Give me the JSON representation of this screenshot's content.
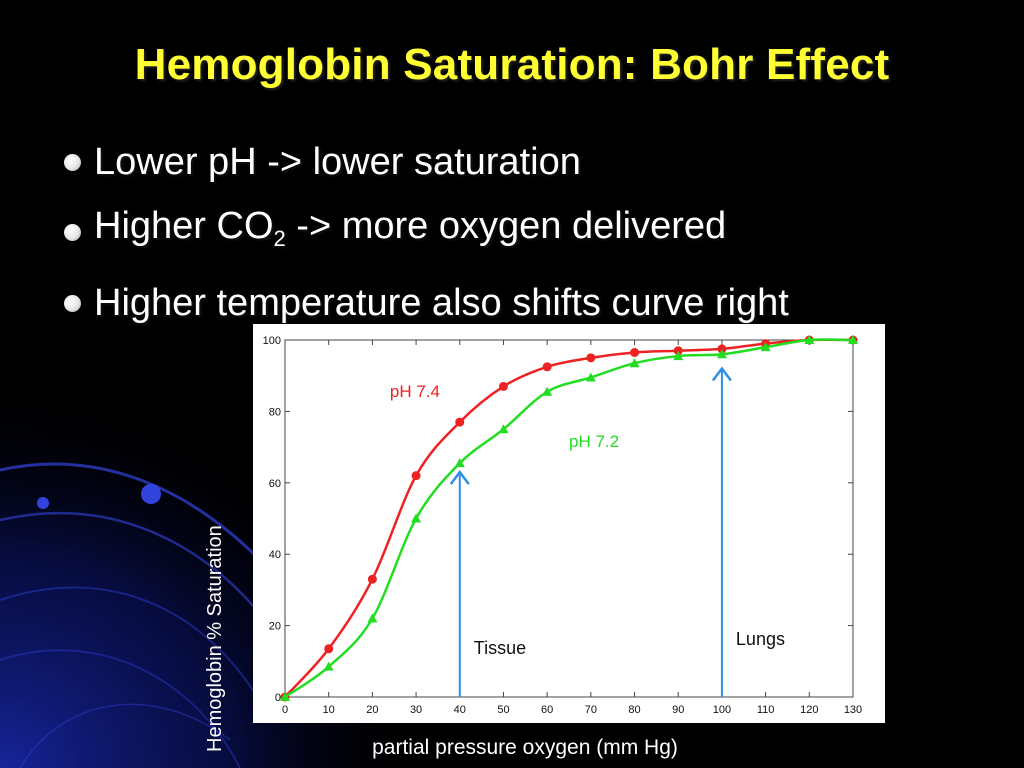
{
  "slide": {
    "title": "Hemoglobin Saturation: Bohr Effect",
    "bullets": [
      {
        "text": "Lower pH -> lower saturation"
      },
      {
        "text_before": "Higher CO",
        "subscript": "2",
        "text_after": " -> more oxygen delivered"
      },
      {
        "text": "Higher temperature also shifts curve right"
      }
    ]
  },
  "colors": {
    "background": "#000000",
    "title": "#ffff33",
    "text": "#ffffff",
    "decor": "#2233cc",
    "ph74": "#ee2222",
    "ph72": "#22dd22",
    "arrow": "#2f8fe8"
  },
  "chart_data": {
    "type": "line",
    "xlabel": "partial pressure oxygen (mm Hg)",
    "ylabel": "Hemoglobin % Saturation",
    "xlim": [
      0,
      130
    ],
    "ylim": [
      0,
      100
    ],
    "x_ticks": [
      0,
      10,
      20,
      30,
      40,
      50,
      60,
      70,
      80,
      90,
      100,
      110,
      120,
      130
    ],
    "y_ticks": [
      0,
      20,
      40,
      60,
      80,
      100
    ],
    "grid": false,
    "series": [
      {
        "name": "pH 7.4",
        "color": "#ee2222",
        "marker": "circle",
        "x": [
          0,
          10,
          20,
          30,
          40,
          50,
          60,
          70,
          80,
          90,
          100,
          110,
          120,
          130
        ],
        "y": [
          0,
          13.5,
          33,
          62,
          77,
          87,
          92.5,
          95,
          96.5,
          97,
          97.5,
          99,
          100,
          100
        ]
      },
      {
        "name": "pH 7.2",
        "color": "#22dd22",
        "marker": "triangle",
        "x": [
          0,
          10,
          20,
          30,
          40,
          50,
          60,
          70,
          80,
          90,
          100,
          110,
          120,
          130
        ],
        "y": [
          0,
          8.5,
          22,
          50,
          65.5,
          75,
          85.5,
          89.5,
          93.5,
          95.5,
          96,
          98,
          100,
          100
        ]
      }
    ],
    "annotations": [
      {
        "text": "Tissue",
        "x": 40,
        "arrow_from_y": 0,
        "arrow_to_y": 63
      },
      {
        "text": "Lungs",
        "x": 100,
        "arrow_from_y": 0,
        "arrow_to_y": 92
      }
    ]
  }
}
